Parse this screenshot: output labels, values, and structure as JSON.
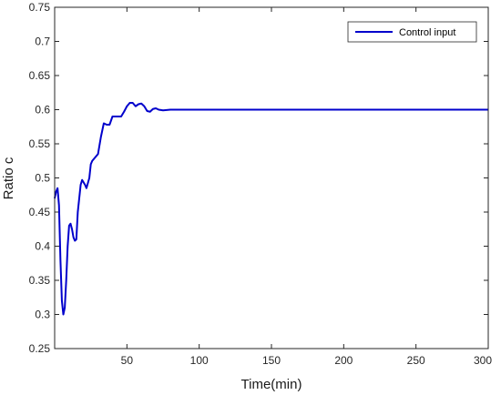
{
  "chart_data": {
    "type": "line",
    "title": "",
    "xlabel": "Time(min)",
    "ylabel": "Ratio c",
    "xlim": [
      0,
      300
    ],
    "ylim": [
      0.25,
      0.75
    ],
    "xticks": [
      50,
      100,
      150,
      200,
      250,
      300
    ],
    "xtick_labels": [
      "50",
      "100",
      "150",
      "200",
      "250",
      "300"
    ],
    "yticks": [
      0.25,
      0.3,
      0.35,
      0.4,
      0.45,
      0.5,
      0.55,
      0.6,
      0.65,
      0.7,
      0.75
    ],
    "ytick_labels": [
      "0.25",
      "0.3",
      "0.35",
      "0.4",
      "0.45",
      "0.5",
      "0.55",
      "0.6",
      "0.65",
      "0.7",
      "0.75"
    ],
    "grid": false,
    "legend_position": "top-right",
    "series": [
      {
        "name": "Control input",
        "color": "#0000cc",
        "points": [
          [
            0,
            0.47
          ],
          [
            1,
            0.48
          ],
          [
            2,
            0.485
          ],
          [
            3,
            0.46
          ],
          [
            4,
            0.38
          ],
          [
            5,
            0.32
          ],
          [
            6,
            0.3
          ],
          [
            7,
            0.31
          ],
          [
            8,
            0.35
          ],
          [
            9,
            0.4
          ],
          [
            10,
            0.43
          ],
          [
            11,
            0.433
          ],
          [
            12,
            0.425
          ],
          [
            13,
            0.413
          ],
          [
            14,
            0.408
          ],
          [
            15,
            0.41
          ],
          [
            16,
            0.45
          ],
          [
            18,
            0.49
          ],
          [
            19,
            0.497
          ],
          [
            21,
            0.49
          ],
          [
            22,
            0.485
          ],
          [
            24,
            0.5
          ],
          [
            25,
            0.52
          ],
          [
            26,
            0.525
          ],
          [
            28,
            0.53
          ],
          [
            30,
            0.535
          ],
          [
            32,
            0.56
          ],
          [
            34,
            0.58
          ],
          [
            36,
            0.578
          ],
          [
            38,
            0.578
          ],
          [
            40,
            0.59
          ],
          [
            43,
            0.59
          ],
          [
            46,
            0.59
          ],
          [
            48,
            0.597
          ],
          [
            50,
            0.605
          ],
          [
            52,
            0.61
          ],
          [
            54,
            0.61
          ],
          [
            56,
            0.605
          ],
          [
            58,
            0.608
          ],
          [
            60,
            0.609
          ],
          [
            62,
            0.605
          ],
          [
            64,
            0.598
          ],
          [
            66,
            0.597
          ],
          [
            68,
            0.601
          ],
          [
            70,
            0.602
          ],
          [
            72,
            0.6
          ],
          [
            75,
            0.599
          ],
          [
            80,
            0.6
          ],
          [
            85,
            0.6
          ],
          [
            100,
            0.6
          ],
          [
            150,
            0.6
          ],
          [
            200,
            0.6
          ],
          [
            250,
            0.6
          ],
          [
            300,
            0.6
          ]
        ]
      }
    ]
  }
}
